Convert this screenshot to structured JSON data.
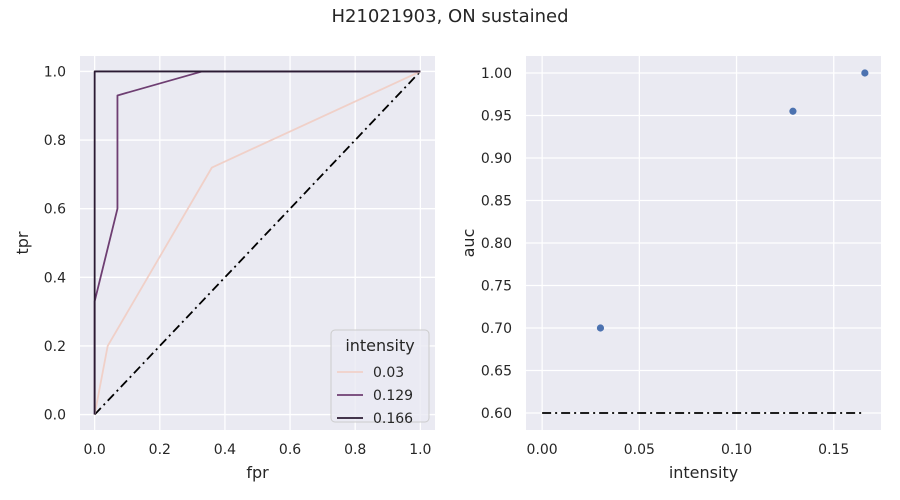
{
  "figure": {
    "title": "H21021903, ON sustained"
  },
  "chart_data": [
    {
      "type": "line",
      "xlabel": "fpr",
      "ylabel": "tpr",
      "xlim": [
        -0.045,
        1.045
      ],
      "ylim": [
        -0.045,
        1.045
      ],
      "xticks": [
        "0.0",
        "0.2",
        "0.4",
        "0.6",
        "0.8",
        "1.0"
      ],
      "yticks": [
        "0.0",
        "0.2",
        "0.4",
        "0.6",
        "0.8",
        "1.0"
      ],
      "grid": true,
      "legend": {
        "title": "intensity",
        "placement": "lower right"
      },
      "series": [
        {
          "name": "0.03",
          "color": "#f0d0c8",
          "x": [
            0,
            0.04,
            0.36,
            1.0
          ],
          "y": [
            0,
            0.2,
            0.72,
            1.0
          ]
        },
        {
          "name": "0.129",
          "color": "#6e3e72",
          "x": [
            0,
            0,
            0.07,
            0.07,
            0.33,
            1.0
          ],
          "y": [
            0,
            0.33,
            0.6,
            0.93,
            1.0,
            1.0
          ]
        },
        {
          "name": "0.166",
          "color": "#2b1b33",
          "x": [
            0,
            0,
            1.0
          ],
          "y": [
            0,
            1.0,
            1.0
          ]
        }
      ],
      "reference_line": {
        "style": "dash-dot",
        "color": "#000000",
        "x": [
          0,
          1
        ],
        "y": [
          0,
          1
        ]
      }
    },
    {
      "type": "scatter",
      "xlabel": "intensity",
      "ylabel": "auc",
      "xlim": [
        -0.0083,
        0.1743
      ],
      "ylim": [
        0.58,
        1.02
      ],
      "xticks": [
        "0.00",
        "0.05",
        "0.10",
        "0.15"
      ],
      "yticks": [
        "0.60",
        "0.65",
        "0.70",
        "0.75",
        "0.80",
        "0.85",
        "0.90",
        "0.95",
        "1.00"
      ],
      "grid": true,
      "series": [
        {
          "color": "#4c72b0",
          "x": [
            0.03,
            0.129,
            0.166
          ],
          "y": [
            0.7,
            0.955,
            1.0
          ]
        }
      ],
      "reference_line": {
        "style": "dash-dot",
        "color": "#000000",
        "x": [
          0,
          0.166
        ],
        "y": [
          0.6,
          0.6
        ]
      }
    }
  ]
}
